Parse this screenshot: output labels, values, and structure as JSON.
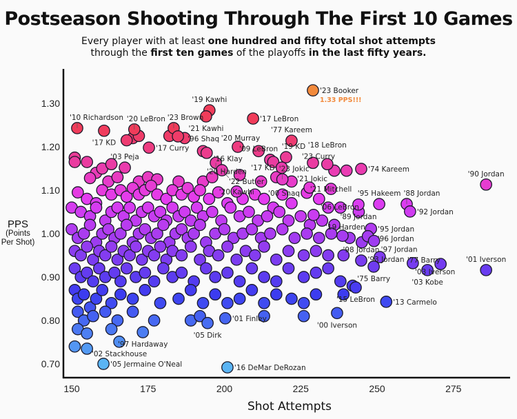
{
  "header": {
    "title": "Postseason Shooting Through The First 10 Games",
    "subtitle_parts": [
      "Every player with at least ",
      "one hundred and fifty total shot attempts",
      "through the ",
      "first ten games",
      " of the playoffs ",
      "in the last fifty years."
    ]
  },
  "chart_data": {
    "type": "scatter",
    "title": "Postseason Shooting Through The First 10 Games",
    "xlabel": "Shot Attempts",
    "ylabel": "PPS",
    "ylabel_sub": "(Points Per Shot)",
    "xlim": [
      147,
      289
    ],
    "ylim": [
      0.665,
      1.375
    ],
    "xticks": [
      150,
      175,
      200,
      225,
      250,
      275
    ],
    "yticks": [
      0.7,
      0.8,
      0.9,
      1.0,
      1.1,
      1.2,
      1.3
    ],
    "ytick_labels": [
      "0.70",
      "0.80",
      "0.90",
      "1.00",
      "1.10",
      "1.20",
      "1.30"
    ],
    "grid": false,
    "color_scale": {
      "low": "#5ab4f4",
      "mid_low": "#3c3cf0",
      "mid": "#9c3cf0",
      "mid_high": "#e43cf0",
      "high": "#f03c5a",
      "highlight": "#f28a3c"
    },
    "highlight_note": "1.33 PPS!!!",
    "labeled_points": [
      {
        "label": "'23 Booker",
        "x": 229,
        "y": 1.33,
        "pos": "right",
        "highlight": true
      },
      {
        "label": "'19 Kawhi",
        "x": 195.1,
        "y": 1.284,
        "pos": "above"
      },
      {
        "label": "'21 Kawhi",
        "x": 194,
        "y": 1.27,
        "pos": "below"
      },
      {
        "label": "'17 LeBron",
        "x": 209.4,
        "y": 1.265,
        "pos": "right"
      },
      {
        "label": "'10 Richardson",
        "x": 151.8,
        "y": 1.243,
        "pos": "above"
      },
      {
        "label": "'17 KD",
        "x": 160.6,
        "y": 1.237,
        "pos": "below"
      },
      {
        "label": "'20 LeBron",
        "x": 170.5,
        "y": 1.24,
        "pos": "above"
      },
      {
        "label": "'23 Brown",
        "x": 183.4,
        "y": 1.243,
        "pos": "above"
      },
      {
        "label": "'96 Shaq",
        "x": 184.8,
        "y": 1.224,
        "pos": "right"
      },
      {
        "label": "'17 Curry",
        "x": 175.3,
        "y": 1.198,
        "pos": "right"
      },
      {
        "label": "'20 Murray",
        "x": 204.4,
        "y": 1.2,
        "pos": "above"
      },
      {
        "label": "'77 Kareem",
        "x": 222,
        "y": 1.214,
        "pos": "above"
      },
      {
        "label": "'09 LeBron",
        "x": 211.2,
        "y": 1.19,
        "pos": "above"
      },
      {
        "label": "'19 KD",
        "x": 220.2,
        "y": 1.176,
        "pos": "above"
      },
      {
        "label": "'17 KD",
        "x": 218.8,
        "y": 1.152,
        "pos": "left"
      },
      {
        "label": "'23 Curry",
        "x": 229,
        "y": 1.163,
        "pos": "above"
      },
      {
        "label": "'18 LeBron",
        "x": 233.7,
        "y": 1.16,
        "pos": "above"
      },
      {
        "label": "'74 Kareem",
        "x": 244.8,
        "y": 1.149,
        "pos": "right"
      },
      {
        "label": "'16 Klay",
        "x": 194.2,
        "y": 1.186,
        "pos": "right"
      },
      {
        "label": "'20 Harden",
        "x": 197.2,
        "y": 1.163,
        "pos": "right"
      },
      {
        "label": "'22 Butler",
        "x": 199.2,
        "y": 1.146,
        "pos": "right"
      },
      {
        "label": "'03 Peja",
        "x": 167.4,
        "y": 1.152,
        "pos": "above"
      },
      {
        "label": "'20 Kawhi",
        "x": 204,
        "y": 1.097,
        "pos": "above"
      },
      {
        "label": "'23 Jokic",
        "x": 219,
        "y": 1.125,
        "pos": "above"
      },
      {
        "label": "'00 Shaq",
        "x": 227,
        "y": 1.094,
        "pos": "left"
      },
      {
        "label": "'21 Jokic",
        "x": 227.9,
        "y": 1.106,
        "pos": "above"
      },
      {
        "label": "'21 Mitchell",
        "x": 234.9,
        "y": 1.103,
        "pos": "above"
      },
      {
        "label": "'90 Jordan",
        "x": 285.7,
        "y": 1.113,
        "pos": "above"
      },
      {
        "label": "'95 Hakeem",
        "x": 250.7,
        "y": 1.068,
        "pos": "above"
      },
      {
        "label": "'88 Jordan",
        "x": 259.7,
        "y": 1.068,
        "pos": "above"
      },
      {
        "label": "'92 Jordan",
        "x": 260.8,
        "y": 1.051,
        "pos": "right"
      },
      {
        "label": "'89 Jordan",
        "x": 243.9,
        "y": 1.067,
        "pos": "below"
      },
      {
        "label": "'06 LeBron",
        "x": 229.2,
        "y": 1.043,
        "pos": "right"
      },
      {
        "label": "'19 Harden",
        "x": 238.7,
        "y": 0.995,
        "pos": "above"
      },
      {
        "label": "'95 Jordan",
        "x": 248,
        "y": 1.011,
        "pos": "right"
      },
      {
        "label": "'96 Jordan",
        "x": 247,
        "y": 0.994,
        "pos": "right"
      },
      {
        "label": "'97 Jordan",
        "x": 249,
        "y": 0.983,
        "pos": "right"
      },
      {
        "label": "'98 Jordan",
        "x": 244.8,
        "y": 0.938,
        "pos": "above"
      },
      {
        "label": "'93 Jordan",
        "x": 250.9,
        "y": 0.946,
        "pos": "above"
      },
      {
        "label": "'75 Barry",
        "x": 248.9,
        "y": 0.924,
        "pos": "below"
      },
      {
        "label": "'77 Barry",
        "x": 261.7,
        "y": 0.932,
        "pos": "above"
      },
      {
        "label": "'03 Kobe",
        "x": 266.5,
        "y": 0.916,
        "pos": "below"
      },
      {
        "label": "'03 Iverson",
        "x": 270.8,
        "y": 0.93,
        "pos": "below"
      },
      {
        "label": "'01 Iverson",
        "x": 285.7,
        "y": 0.916,
        "pos": "above"
      },
      {
        "label": "'15 LeBron",
        "x": 243,
        "y": 0.876,
        "pos": "below"
      },
      {
        "label": "'13 Carmelo",
        "x": 253,
        "y": 0.843,
        "pos": "right"
      },
      {
        "label": "'00 Iverson",
        "x": 236.9,
        "y": 0.817,
        "pos": "below"
      },
      {
        "label": "'01 Finley",
        "x": 200.3,
        "y": 0.805,
        "pos": "right"
      },
      {
        "label": "'05 Dirk",
        "x": 194.5,
        "y": 0.794,
        "pos": "below"
      },
      {
        "label": "'97 Hardaway",
        "x": 173.3,
        "y": 0.773,
        "pos": "below"
      },
      {
        "label": "'02 Stackhouse",
        "x": 165.6,
        "y": 0.751,
        "pos": "below"
      },
      {
        "label": "'05 Jermaine O'Neal",
        "x": 160.4,
        "y": 0.7,
        "pos": "right"
      },
      {
        "label": "'16 DeMar DeRozan",
        "x": 201,
        "y": 0.692,
        "pos": "right"
      }
    ],
    "other_points": [
      [
        151,
        1.175
      ],
      [
        151,
        1.165
      ],
      [
        155,
        1.165
      ],
      [
        158,
        1.14
      ],
      [
        160,
        1.15
      ],
      [
        163,
        1.16
      ],
      [
        156,
        1.128
      ],
      [
        162,
        1.12
      ],
      [
        165,
        1.13
      ],
      [
        172,
        1.12
      ],
      [
        175,
        1.13
      ],
      [
        178,
        1.125
      ],
      [
        185,
        1.12
      ],
      [
        193,
        1.12
      ],
      [
        196,
        1.13
      ],
      [
        205,
        1.135
      ],
      [
        212,
        1.12
      ],
      [
        217,
        1.13
      ],
      [
        222,
        1.12
      ],
      [
        236,
        1.145
      ],
      [
        240,
        1.145
      ],
      [
        170,
        1.22
      ],
      [
        172,
        1.225
      ],
      [
        168,
        1.215
      ],
      [
        182,
        1.225
      ],
      [
        187,
        1.22
      ],
      [
        193,
        1.19
      ],
      [
        215,
        1.17
      ],
      [
        216,
        1.165
      ],
      [
        152,
        1.095
      ],
      [
        155,
        1.08
      ],
      [
        158,
        1.07
      ],
      [
        160,
        1.1
      ],
      [
        163,
        1.09
      ],
      [
        166,
        1.1
      ],
      [
        168,
        1.085
      ],
      [
        170,
        1.105
      ],
      [
        172,
        1.09
      ],
      [
        174,
        1.1
      ],
      [
        176,
        1.11
      ],
      [
        178,
        1.09
      ],
      [
        181,
        1.08
      ],
      [
        183,
        1.1
      ],
      [
        186,
        1.09
      ],
      [
        188,
        1.105
      ],
      [
        190,
        1.085
      ],
      [
        192,
        1.1
      ],
      [
        195,
        1.08
      ],
      [
        198,
        1.095
      ],
      [
        201,
        1.07
      ],
      [
        206,
        1.08
      ],
      [
        210,
        1.09
      ],
      [
        213,
        1.08
      ],
      [
        216,
        1.06
      ],
      [
        219,
        1.09
      ],
      [
        222,
        1.07
      ],
      [
        231,
        1.08
      ],
      [
        234,
        1.06
      ],
      [
        238,
        1.06
      ],
      [
        244,
        1.05
      ],
      [
        150,
        1.06
      ],
      [
        153,
        1.05
      ],
      [
        156,
        1.04
      ],
      [
        158,
        1.06
      ],
      [
        161,
        1.03
      ],
      [
        163,
        1.05
      ],
      [
        165,
        1.06
      ],
      [
        167,
        1.04
      ],
      [
        169,
        1.06
      ],
      [
        171,
        1.03
      ],
      [
        173,
        1.05
      ],
      [
        175,
        1.06
      ],
      [
        177,
        1.04
      ],
      [
        179,
        1.05
      ],
      [
        181,
        1.03
      ],
      [
        183,
        1.06
      ],
      [
        185,
        1.04
      ],
      [
        187,
        1.05
      ],
      [
        189,
        1.03
      ],
      [
        191,
        1.06
      ],
      [
        193,
        1.04
      ],
      [
        196,
        1.05
      ],
      [
        199,
        1.03
      ],
      [
        202,
        1.06
      ],
      [
        205,
        1.04
      ],
      [
        208,
        1.05
      ],
      [
        211,
        1.03
      ],
      [
        214,
        1.04
      ],
      [
        218,
        1.05
      ],
      [
        221,
        1.03
      ],
      [
        225,
        1.04
      ],
      [
        228,
        1.02
      ],
      [
        232,
        1.03
      ],
      [
        236,
        1.02
      ],
      [
        150,
        1.01
      ],
      [
        152,
        0.99
      ],
      [
        154,
        1.0
      ],
      [
        156,
        1.02
      ],
      [
        158,
        0.98
      ],
      [
        160,
        1.0
      ],
      [
        162,
        1.01
      ],
      [
        164,
        0.99
      ],
      [
        166,
        1.0
      ],
      [
        168,
        1.02
      ],
      [
        170,
        0.98
      ],
      [
        172,
        1.0
      ],
      [
        174,
        1.01
      ],
      [
        176,
        0.99
      ],
      [
        178,
        1.0
      ],
      [
        180,
        1.02
      ],
      [
        182,
        0.98
      ],
      [
        184,
        1.0
      ],
      [
        186,
        1.01
      ],
      [
        188,
        0.99
      ],
      [
        190,
        1.0
      ],
      [
        192,
        1.02
      ],
      [
        194,
        0.98
      ],
      [
        197,
        1.0
      ],
      [
        200,
        1.01
      ],
      [
        203,
        0.99
      ],
      [
        206,
        1.0
      ],
      [
        209,
        1.01
      ],
      [
        212,
        0.99
      ],
      [
        215,
        1.0
      ],
      [
        219,
        1.01
      ],
      [
        223,
        0.99
      ],
      [
        227,
        1.0
      ],
      [
        231,
        0.99
      ],
      [
        235,
        1.0
      ],
      [
        241,
        0.99
      ],
      [
        245,
        0.98
      ],
      [
        151,
        0.96
      ],
      [
        153,
        0.95
      ],
      [
        155,
        0.97
      ],
      [
        157,
        0.94
      ],
      [
        159,
        0.96
      ],
      [
        161,
        0.95
      ],
      [
        163,
        0.97
      ],
      [
        165,
        0.94
      ],
      [
        167,
        0.96
      ],
      [
        169,
        0.95
      ],
      [
        171,
        0.97
      ],
      [
        173,
        0.94
      ],
      [
        175,
        0.96
      ],
      [
        177,
        0.95
      ],
      [
        179,
        0.97
      ],
      [
        181,
        0.94
      ],
      [
        183,
        0.96
      ],
      [
        186,
        0.95
      ],
      [
        189,
        0.97
      ],
      [
        192,
        0.94
      ],
      [
        195,
        0.96
      ],
      [
        198,
        0.95
      ],
      [
        201,
        0.97
      ],
      [
        204,
        0.94
      ],
      [
        207,
        0.96
      ],
      [
        210,
        0.95
      ],
      [
        213,
        0.97
      ],
      [
        217,
        0.94
      ],
      [
        221,
        0.96
      ],
      [
        226,
        0.95
      ],
      [
        230,
        0.96
      ],
      [
        234,
        0.95
      ],
      [
        239,
        0.95
      ],
      [
        151,
        0.92
      ],
      [
        153,
        0.9
      ],
      [
        155,
        0.91
      ],
      [
        157,
        0.89
      ],
      [
        159,
        0.92
      ],
      [
        161,
        0.9
      ],
      [
        164,
        0.91
      ],
      [
        166,
        0.89
      ],
      [
        168,
        0.92
      ],
      [
        171,
        0.9
      ],
      [
        174,
        0.91
      ],
      [
        177,
        0.89
      ],
      [
        180,
        0.92
      ],
      [
        183,
        0.9
      ],
      [
        186,
        0.91
      ],
      [
        190,
        0.89
      ],
      [
        194,
        0.92
      ],
      [
        197,
        0.9
      ],
      [
        201,
        0.91
      ],
      [
        205,
        0.89
      ],
      [
        209,
        0.92
      ],
      [
        213,
        0.9
      ],
      [
        217,
        0.89
      ],
      [
        221,
        0.92
      ],
      [
        226,
        0.9
      ],
      [
        230,
        0.91
      ],
      [
        234,
        0.92
      ],
      [
        238,
        0.89
      ],
      [
        242,
        0.88
      ],
      [
        151,
        0.87
      ],
      [
        152,
        0.85
      ],
      [
        154,
        0.86
      ],
      [
        156,
        0.83
      ],
      [
        158,
        0.85
      ],
      [
        160,
        0.87
      ],
      [
        163,
        0.84
      ],
      [
        166,
        0.86
      ],
      [
        170,
        0.85
      ],
      [
        174,
        0.87
      ],
      [
        179,
        0.84
      ],
      [
        185,
        0.85
      ],
      [
        189,
        0.87
      ],
      [
        193,
        0.84
      ],
      [
        197,
        0.86
      ],
      [
        201,
        0.84
      ],
      [
        205,
        0.85
      ],
      [
        209,
        0.87
      ],
      [
        213,
        0.84
      ],
      [
        217,
        0.86
      ],
      [
        222,
        0.85
      ],
      [
        226,
        0.84
      ],
      [
        230,
        0.86
      ],
      [
        239,
        0.86
      ],
      [
        152,
        0.82
      ],
      [
        154,
        0.8
      ],
      [
        157,
        0.81
      ],
      [
        161,
        0.82
      ],
      [
        165,
        0.8
      ],
      [
        170,
        0.82
      ],
      [
        177,
        0.8
      ],
      [
        189,
        0.8
      ],
      [
        192,
        0.81
      ],
      [
        213,
        0.81
      ],
      [
        226,
        0.81
      ],
      [
        152,
        0.78
      ],
      [
        155,
        0.77
      ],
      [
        163,
        0.78
      ],
      [
        151,
        0.74
      ],
      [
        155,
        0.735
      ]
    ]
  }
}
